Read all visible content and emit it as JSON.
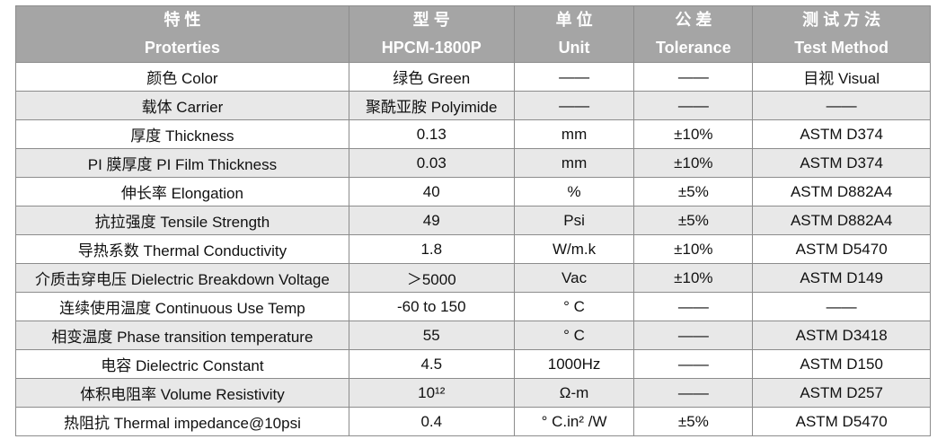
{
  "table": {
    "header": [
      [
        "特 性",
        "Proterties"
      ],
      [
        "型 号",
        "HPCM-1800P"
      ],
      [
        "单 位",
        "Unit"
      ],
      [
        "公 差",
        "Tolerance"
      ],
      [
        "测 试 方 法",
        "Test Method"
      ]
    ],
    "rows": [
      [
        "颜色 Color",
        "绿色  Green",
        "——",
        "——",
        "目视  Visual"
      ],
      [
        "载体 Carrier",
        "聚酰亚胺 Polyimide",
        "——",
        "——",
        "——"
      ],
      [
        "厚度 Thickness",
        "0.13",
        "mm",
        "±10%",
        "ASTM D374"
      ],
      [
        "PI 膜厚度 PI Film Thickness",
        "0.03",
        "mm",
        "±10%",
        "ASTM D374"
      ],
      [
        "伸长率 Elongation",
        "40",
        "%",
        "±5%",
        "ASTM D882A4"
      ],
      [
        "抗拉强度 Tensile Strength",
        "49",
        "Psi",
        "±5%",
        "ASTM D882A4"
      ],
      [
        "导热系数 Thermal Conductivity",
        "1.8",
        "W/m.k",
        "±10%",
        "ASTM D5470"
      ],
      [
        "介质击穿电压 Dielectric Breakdown Voltage",
        "＞5000",
        "Vac",
        "±10%",
        "ASTM D149"
      ],
      [
        "连续使用温度 Continuous Use Temp",
        "-60 to 150",
        "° C",
        "——",
        "——"
      ],
      [
        "相变温度 Phase transition temperature",
        "55",
        "° C",
        "——",
        "ASTM D3418"
      ],
      [
        "电容 Dielectric Constant",
        "4.5",
        "1000Hz",
        "——",
        "ASTM D150"
      ],
      [
        "体积电阻率 Volume Resistivity",
        "10¹²",
        "Ω-m",
        "——",
        "ASTM D257"
      ],
      [
        "热阻抗 Thermal impedance@10psi",
        "0.4",
        "° C.in² /W",
        "±5%",
        "ASTM D5470"
      ]
    ]
  }
}
